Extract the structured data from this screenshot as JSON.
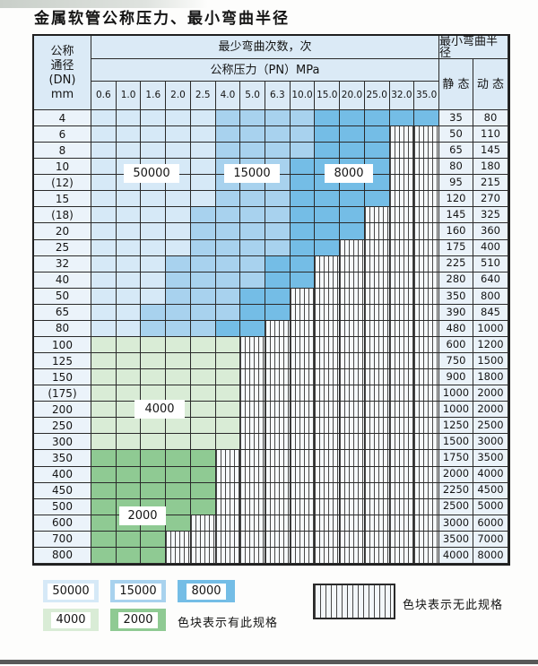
{
  "title": "金属软管公称压力、最小弯曲半径",
  "colors": {
    "blue_50000": "#d6e9f7",
    "blue_15000": "#a8d2ee",
    "blue_8000": "#74bde6",
    "green_4000": "#d9ecd6",
    "green_2000": "#8fca93",
    "header_bg": "#dbeaf6",
    "border": "#2a2a2a"
  },
  "chart_data": {
    "type": "table",
    "title": "金属软管公称压力、最小弯曲半径",
    "header": {
      "dn_lines": [
        "公称",
        "通径",
        "(DN)",
        "mm"
      ],
      "bend_cycles": "最少弯曲次数，次",
      "bend_radius": "最小弯曲半径",
      "pressure": "公称压力（PN）MPa",
      "static": "静 态",
      "dynamic": "动 态"
    },
    "pressure_values_mpa": [
      "0.6",
      "1.0",
      "1.6",
      "2.0",
      "2.5",
      "4.0",
      "5.0",
      "6.3",
      "10.0",
      "15.0",
      "20.0",
      "25.0",
      "32.0",
      "35.0"
    ],
    "bands": {
      "blue_50000": {
        "label": "50000",
        "meaning": "最少弯曲次数 50000 次"
      },
      "blue_15000": {
        "label": "15000",
        "meaning": "最少弯曲次数 15000 次"
      },
      "blue_8000": {
        "label": "8000",
        "meaning": "最少弯曲次数 8000 次"
      },
      "green_4000": {
        "label": "4000",
        "meaning": "最少弯曲次数 4000 次"
      },
      "green_2000": {
        "label": "2000",
        "meaning": "最少弯曲次数 2000 次"
      },
      "striped": {
        "meaning": "色块表示无此规格"
      }
    },
    "rows": [
      {
        "dn": "4",
        "band": "blue",
        "light_to": 5,
        "medium_to": 9,
        "max_col": 14,
        "static": "35",
        "dynamic": "80"
      },
      {
        "dn": "6",
        "band": "blue",
        "light_to": 5,
        "medium_to": 9,
        "max_col": 12,
        "static": "50",
        "dynamic": "110"
      },
      {
        "dn": "8",
        "band": "blue",
        "light_to": 5,
        "medium_to": 9,
        "max_col": 12,
        "static": "65",
        "dynamic": "145"
      },
      {
        "dn": "10",
        "band": "blue",
        "light_to": 5,
        "medium_to": 8,
        "max_col": 12,
        "static": "80",
        "dynamic": "180"
      },
      {
        "dn": "(12)",
        "band": "blue",
        "light_to": 5,
        "medium_to": 8,
        "max_col": 12,
        "static": "95",
        "dynamic": "215"
      },
      {
        "dn": "15",
        "band": "blue",
        "light_to": 5,
        "medium_to": 8,
        "max_col": 12,
        "static": "120",
        "dynamic": "270"
      },
      {
        "dn": "(18)",
        "band": "blue",
        "light_to": 4,
        "medium_to": 8,
        "max_col": 11,
        "static": "145",
        "dynamic": "325"
      },
      {
        "dn": "20",
        "band": "blue",
        "light_to": 4,
        "medium_to": 8,
        "max_col": 11,
        "static": "160",
        "dynamic": "360"
      },
      {
        "dn": "25",
        "band": "blue",
        "light_to": 4,
        "medium_to": 8,
        "max_col": 10,
        "static": "175",
        "dynamic": "400"
      },
      {
        "dn": "32",
        "band": "blue",
        "light_to": 3,
        "medium_to": 7,
        "max_col": 9,
        "static": "225",
        "dynamic": "510"
      },
      {
        "dn": "40",
        "band": "blue",
        "light_to": 3,
        "medium_to": 7,
        "max_col": 9,
        "static": "280",
        "dynamic": "640"
      },
      {
        "dn": "50",
        "band": "blue",
        "light_to": 3,
        "medium_to": 6,
        "max_col": 8,
        "static": "350",
        "dynamic": "800"
      },
      {
        "dn": "65",
        "band": "blue",
        "light_to": 2,
        "medium_to": 6,
        "max_col": 8,
        "static": "390",
        "dynamic": "845"
      },
      {
        "dn": "80",
        "band": "blue",
        "light_to": 2,
        "medium_to": 5,
        "max_col": 7,
        "static": "480",
        "dynamic": "1000"
      },
      {
        "dn": "100",
        "band": "green_4000",
        "max_col": 6,
        "static": "600",
        "dynamic": "1200"
      },
      {
        "dn": "125",
        "band": "green_4000",
        "max_col": 6,
        "static": "750",
        "dynamic": "1500"
      },
      {
        "dn": "150",
        "band": "green_4000",
        "max_col": 6,
        "static": "900",
        "dynamic": "1800"
      },
      {
        "dn": "(175)",
        "band": "green_4000",
        "max_col": 6,
        "static": "1000",
        "dynamic": "2000"
      },
      {
        "dn": "200",
        "band": "green_4000",
        "max_col": 6,
        "static": "1000",
        "dynamic": "2000"
      },
      {
        "dn": "250",
        "band": "green_4000",
        "max_col": 6,
        "static": "1250",
        "dynamic": "2500"
      },
      {
        "dn": "300",
        "band": "green_4000",
        "max_col": 6,
        "static": "1500",
        "dynamic": "3000"
      },
      {
        "dn": "350",
        "band": "green_2000",
        "max_col": 5,
        "static": "1750",
        "dynamic": "3500"
      },
      {
        "dn": "400",
        "band": "green_2000",
        "max_col": 5,
        "static": "2000",
        "dynamic": "4000"
      },
      {
        "dn": "450",
        "band": "green_2000",
        "max_col": 5,
        "static": "2250",
        "dynamic": "4500"
      },
      {
        "dn": "500",
        "band": "green_2000",
        "max_col": 5,
        "static": "2500",
        "dynamic": "5000"
      },
      {
        "dn": "600",
        "band": "green_2000",
        "max_col": 4,
        "static": "3000",
        "dynamic": "6000"
      },
      {
        "dn": "700",
        "band": "green_2000",
        "max_col": 3,
        "static": "3500",
        "dynamic": "7000"
      },
      {
        "dn": "800",
        "band": "green_2000",
        "max_col": 3,
        "static": "4000",
        "dynamic": "8000"
      }
    ]
  },
  "overlay_labels": {
    "l50000": "50000",
    "l15000": "15000",
    "l8000": "8000",
    "l4000": "4000",
    "l2000": "2000"
  },
  "legend": {
    "blue": [
      "50000",
      "15000",
      "8000"
    ],
    "green": [
      "4000",
      "2000"
    ],
    "has_spec_text": "色块表示有此规格",
    "no_spec_text": "色块表示无此规格"
  }
}
